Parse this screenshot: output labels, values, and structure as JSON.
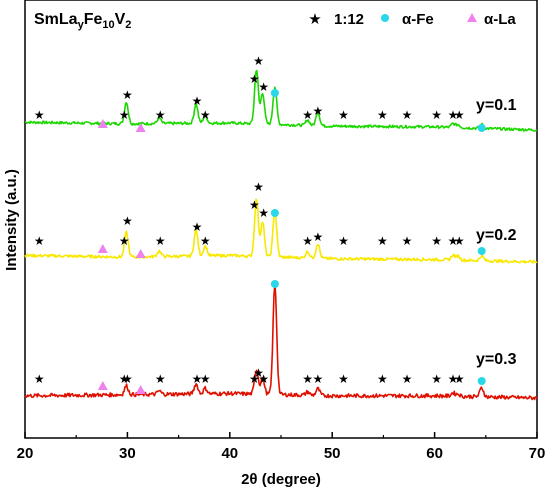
{
  "chart_data": {
    "type": "line",
    "title": "SmLa",
    "title_sub": "y",
    "title_mid": "Fe",
    "title_sub2": "10",
    "title_end": "V",
    "title_sub3": "2",
    "xlabel": "2θ (degree)",
    "ylabel": "Intensity (a.u.)",
    "xlim": [
      20,
      70
    ],
    "xticks": [
      "20",
      "30",
      "40",
      "50",
      "60",
      "70"
    ],
    "yticks_shown": false,
    "legend": {
      "placement": "top-right",
      "entries": [
        {
          "label": "1:12",
          "marker": "star",
          "color": "#000000"
        },
        {
          "label": "α-Fe",
          "marker": "circle",
          "color": "#29d7ea"
        },
        {
          "label": "α-La",
          "marker": "triangle",
          "color": "#ee82ee"
        }
      ]
    },
    "series": [
      {
        "name": "y=0.1",
        "color": "#1cd800",
        "offset": 2.0,
        "baseline": [
          [
            20,
            0.1
          ],
          [
            30,
            0.08
          ],
          [
            40,
            0.09
          ],
          [
            50,
            0.05
          ],
          [
            60,
            0.04
          ],
          [
            70,
            0.0
          ]
        ],
        "peaks": [
          [
            29.9,
            0.28
          ],
          [
            33.1,
            0.07
          ],
          [
            36.7,
            0.25
          ],
          [
            37.6,
            0.1
          ],
          [
            42.6,
            0.7
          ],
          [
            43.2,
            0.4
          ],
          [
            44.4,
            0.48
          ],
          [
            47.6,
            0.07
          ],
          [
            48.6,
            0.18
          ],
          [
            61.8,
            0.05
          ],
          [
            62.3,
            0.04
          ],
          [
            64.6,
            0.05
          ]
        ]
      },
      {
        "name": "y=0.2",
        "color": "#f8e800",
        "offset": 1.0,
        "baseline": [
          [
            20,
            0.08
          ],
          [
            30,
            0.06
          ],
          [
            40,
            0.08
          ],
          [
            50,
            0.04
          ],
          [
            60,
            0.03
          ],
          [
            70,
            0.0
          ]
        ],
        "peaks": [
          [
            29.9,
            0.3
          ],
          [
            33.1,
            0.07
          ],
          [
            36.7,
            0.32
          ],
          [
            37.6,
            0.12
          ],
          [
            42.6,
            0.7
          ],
          [
            43.2,
            0.42
          ],
          [
            44.4,
            0.55
          ],
          [
            47.6,
            0.08
          ],
          [
            48.6,
            0.18
          ],
          [
            61.8,
            0.06
          ],
          [
            62.3,
            0.05
          ],
          [
            64.6,
            0.06
          ]
        ]
      },
      {
        "name": "y=0.3",
        "color": "#e01000",
        "offset": 0.0,
        "baseline": [
          [
            20,
            0.02
          ],
          [
            30,
            0.03
          ],
          [
            40,
            0.04
          ],
          [
            50,
            0.02
          ],
          [
            60,
            0.02
          ],
          [
            70,
            0.0
          ]
        ],
        "peaks": [
          [
            29.9,
            0.08
          ],
          [
            33.1,
            0.03
          ],
          [
            36.7,
            0.09
          ],
          [
            37.6,
            0.05
          ],
          [
            42.6,
            0.22
          ],
          [
            43.2,
            0.15
          ],
          [
            44.4,
            0.98
          ],
          [
            47.6,
            0.03
          ],
          [
            48.6,
            0.06
          ],
          [
            61.8,
            0.03
          ],
          [
            62.3,
            0.02
          ],
          [
            64.6,
            0.08
          ]
        ]
      }
    ],
    "markers": {
      "star_1_12": [
        21.4,
        29.7,
        30.0,
        33.2,
        36.8,
        37.6,
        42.4,
        42.8,
        43.3,
        47.6,
        48.6,
        51.1,
        54.9,
        57.3,
        60.2,
        61.8,
        62.4
      ],
      "circle_alpha_fe": [
        44.4,
        64.6
      ],
      "triangle_alpha_la": [
        27.6,
        31.3
      ]
    }
  }
}
